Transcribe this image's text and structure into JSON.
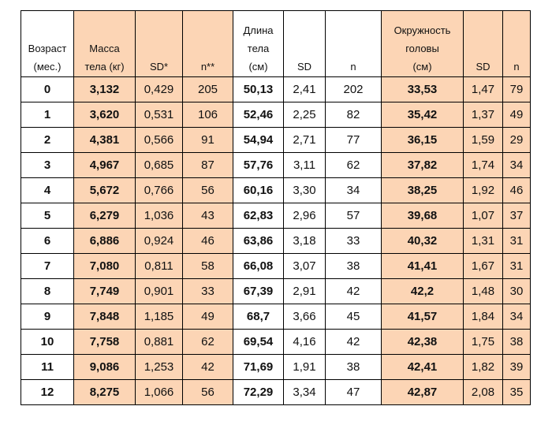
{
  "headers": [
    {
      "text": "Возраст\n(мес.)",
      "shade": false
    },
    {
      "text": "Масса\nтела (кг)",
      "shade": true
    },
    {
      "text": "SD*",
      "shade": true
    },
    {
      "text": "n**",
      "shade": true
    },
    {
      "text": "Длина\nтела\n(см)",
      "shade": false
    },
    {
      "text": "SD",
      "shade": false
    },
    {
      "text": "n",
      "shade": false
    },
    {
      "text": "Окружность\nголовы\n(см)",
      "shade": true
    },
    {
      "text": "SD",
      "shade": true
    },
    {
      "text": "n",
      "shade": true
    }
  ],
  "rows": [
    [
      "0",
      "3,132",
      "0,429",
      "205",
      "50,13",
      "2,41",
      "202",
      "33,53",
      "1,47",
      "79"
    ],
    [
      "1",
      "3,620",
      "0,531",
      "106",
      "52,46",
      "2,25",
      "82",
      "35,42",
      "1,37",
      "49"
    ],
    [
      "2",
      "4,381",
      "0,566",
      "91",
      "54,94",
      "2,71",
      "77",
      "36,15",
      "1,59",
      "29"
    ],
    [
      "3",
      "4,967",
      "0,685",
      "87",
      "57,76",
      "3,11",
      "62",
      "37,82",
      "1,74",
      "34"
    ],
    [
      "4",
      "5,672",
      "0,766",
      "56",
      "60,16",
      "3,30",
      "34",
      "38,25",
      "1,92",
      "46"
    ],
    [
      "5",
      "6,279",
      "1,036",
      "43",
      "62,83",
      "2,96",
      "57",
      "39,68",
      "1,07",
      "37"
    ],
    [
      "6",
      "6,886",
      "0,924",
      "46",
      "63,86",
      "3,18",
      "33",
      "40,32",
      "1,31",
      "31"
    ],
    [
      "7",
      "7,080",
      "0,811",
      "58",
      "66,08",
      "3,07",
      "38",
      "41,41",
      "1,67",
      "31"
    ],
    [
      "8",
      "7,749",
      "0,901",
      "33",
      "67,39",
      "2,91",
      "42",
      "42,2",
      "1,48",
      "30"
    ],
    [
      "9",
      "7,848",
      "1,185",
      "49",
      "68,7",
      "3,66",
      "45",
      "41,57",
      "1,84",
      "34"
    ],
    [
      "10",
      "7,758",
      "0,881",
      "62",
      "69,54",
      "4,16",
      "42",
      "42,38",
      "1,75",
      "38"
    ],
    [
      "11",
      "9,086",
      "1,253",
      "42",
      "71,69",
      "1,91",
      "38",
      "42,41",
      "1,82",
      "39"
    ],
    [
      "12",
      "8,275",
      "1,066",
      "56",
      "72,29",
      "3,34",
      "47",
      "42,87",
      "2,08",
      "35"
    ]
  ],
  "column_styles": {
    "shaded_columns": [
      1,
      2,
      3,
      7,
      8,
      9
    ],
    "bold_columns": [
      0,
      1,
      4,
      7
    ],
    "shade_color": "#fcd5b5"
  }
}
